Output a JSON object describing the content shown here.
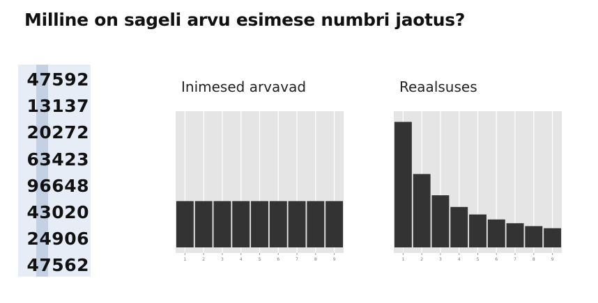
{
  "title": "Milline on sageli arvu esimese numbri jaotus?",
  "numbers": [
    "47592",
    "13137",
    "20272",
    "63423",
    "96648",
    "43020",
    "24906",
    "47562"
  ],
  "colors": {
    "bar": "#333333",
    "panel": "#e5e5e5",
    "grid": "#ffffff",
    "number_bg": "#e7edf6",
    "first_digit_bg": "#c4d1e2"
  },
  "chart_data": [
    {
      "type": "bar",
      "title": "Inimesed arvavad",
      "categories": [
        "1",
        "2",
        "3",
        "4",
        "5",
        "6",
        "7",
        "8",
        "9"
      ],
      "values": [
        0.111,
        0.111,
        0.111,
        0.111,
        0.111,
        0.111,
        0.111,
        0.111,
        0.111
      ],
      "ylim": [
        0,
        0.32
      ],
      "xlabel": "",
      "ylabel": "",
      "grid": true,
      "y_ticks_shown": false
    },
    {
      "type": "bar",
      "title": "Reaalsuses",
      "categories": [
        "1",
        "2",
        "3",
        "4",
        "5",
        "6",
        "7",
        "8",
        "9"
      ],
      "values": [
        0.301,
        0.176,
        0.125,
        0.097,
        0.079,
        0.067,
        0.058,
        0.051,
        0.046
      ],
      "ylim": [
        0,
        0.32
      ],
      "xlabel": "",
      "ylabel": "",
      "grid": true,
      "y_ticks_shown": false
    }
  ]
}
